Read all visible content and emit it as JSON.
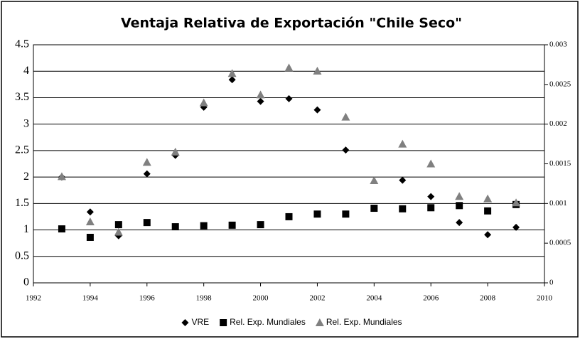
{
  "chart_data": {
    "type": "scatter",
    "title": "Ventaja Relativa de Exportación \"Chile Seco\"",
    "x": [
      1993,
      1994,
      1995,
      1996,
      1997,
      1998,
      1999,
      2000,
      2001,
      2002,
      2003,
      2004,
      2005,
      2006,
      2007,
      2008,
      2009
    ],
    "series": [
      {
        "name": "VRE",
        "color": "#000000",
        "marker": "diamond",
        "values": [
          2.0,
          1.34,
          0.89,
          2.06,
          2.41,
          3.32,
          3.84,
          3.43,
          3.48,
          3.27,
          2.51,
          1.41,
          1.94,
          1.63,
          1.14,
          0.91,
          1.05
        ]
      },
      {
        "name": "Rel. Exp. Mundiales",
        "color": "#000000",
        "marker": "square",
        "values": [
          1.02,
          0.86,
          1.1,
          1.14,
          1.06,
          1.08,
          1.09,
          1.1,
          1.25,
          1.3,
          1.3,
          1.41,
          1.4,
          1.42,
          1.46,
          1.36,
          1.48
        ]
      },
      {
        "name": "Rel. Exp. Mundiales",
        "color": "#808080",
        "marker": "triangle",
        "axis": "y2",
        "values": [
          0.00134,
          0.00077,
          0.00064,
          0.00152,
          0.00165,
          0.00227,
          0.00264,
          0.00237,
          0.00271,
          0.00267,
          0.00209,
          0.00129,
          0.00175,
          0.0015,
          0.00109,
          0.00106,
          0.00101
        ]
      }
    ],
    "xlim": [
      1992,
      2010
    ],
    "xticks": [
      1992,
      1994,
      1996,
      1998,
      2000,
      2002,
      2004,
      2006,
      2008,
      2010
    ],
    "ylim": [
      0,
      4.5
    ],
    "yticks": [
      0,
      0.5,
      1,
      1.5,
      2,
      2.5,
      3,
      3.5,
      4,
      4.5
    ],
    "y2lim": [
      0,
      0.003
    ],
    "y2ticks": [
      0,
      0.0005,
      0.001,
      0.0015,
      0.002,
      0.0025,
      0.003
    ],
    "grid": true,
    "legend": "bottom"
  }
}
